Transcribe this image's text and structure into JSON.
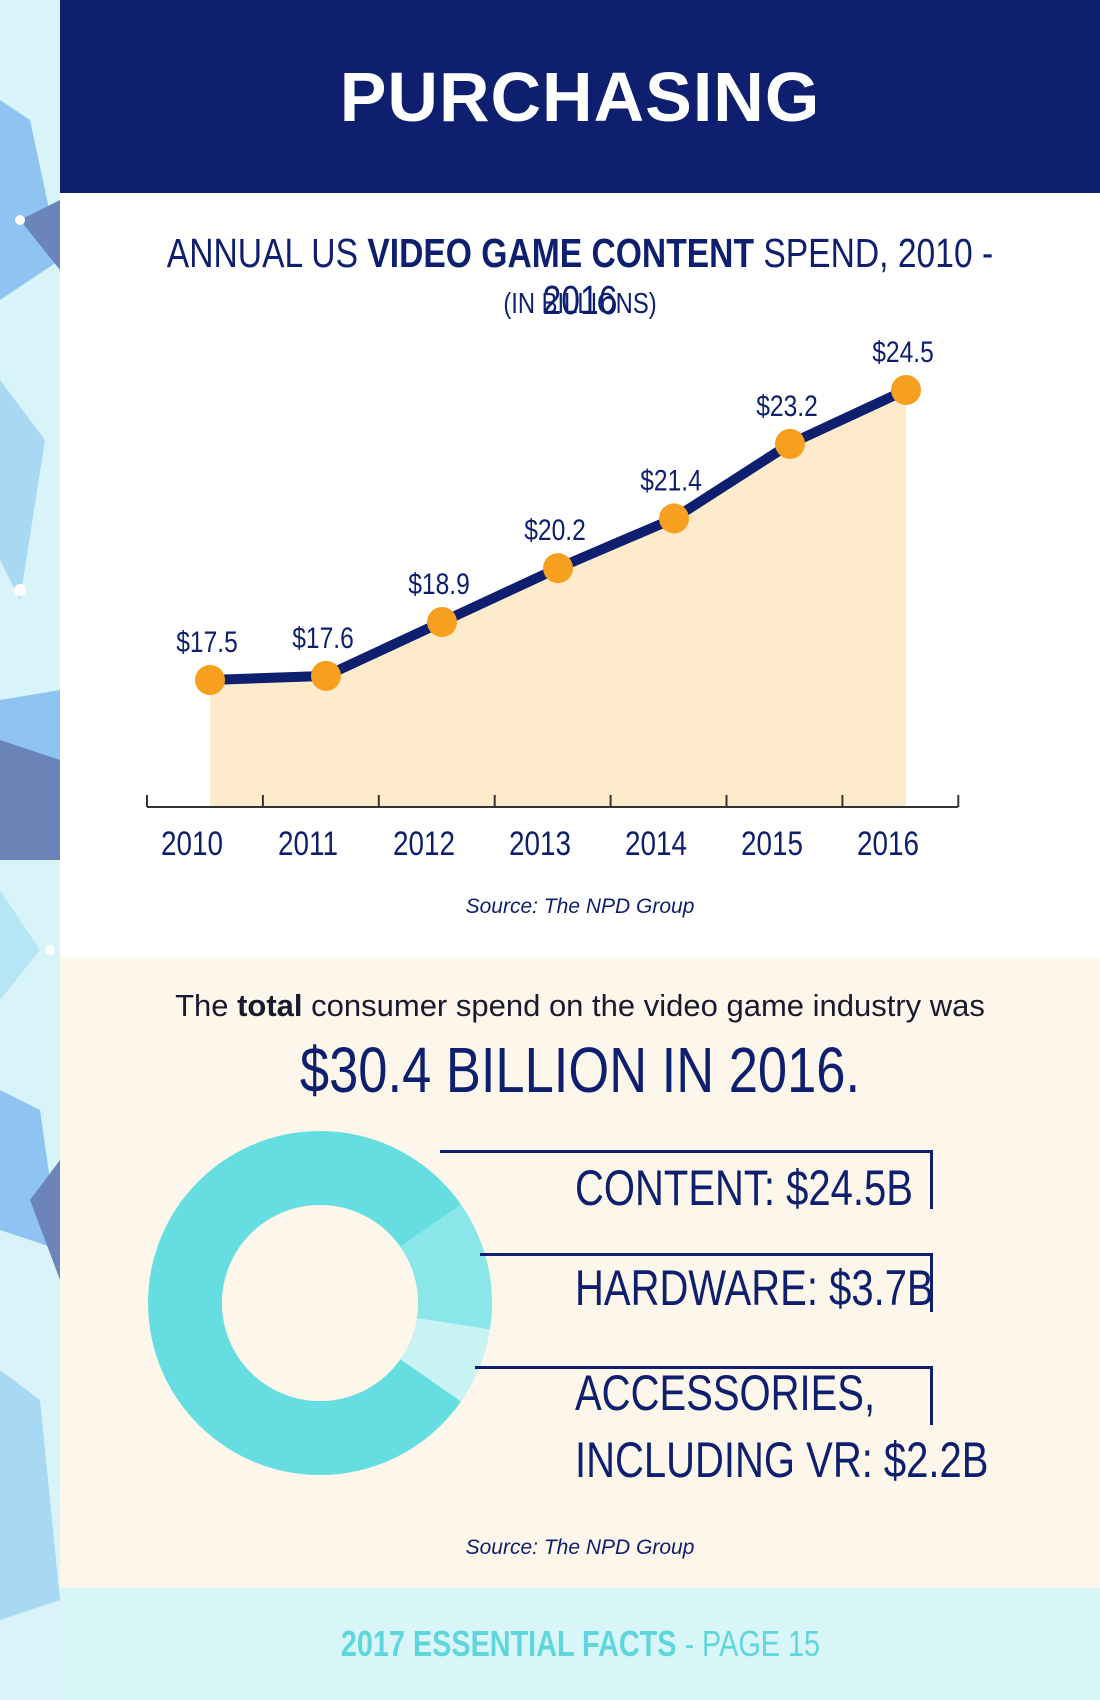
{
  "header": {
    "title": "PURCHASING"
  },
  "chart_data": [
    {
      "type": "area",
      "title_parts": {
        "pre": "ANNUAL US ",
        "bold": "VIDEO GAME CONTENT",
        "post": " SPEND, 2010 - 2016"
      },
      "subtitle": "(IN BILLIONS)",
      "categories": [
        "2010",
        "2011",
        "2012",
        "2013",
        "2014",
        "2015",
        "2016"
      ],
      "values": [
        17.5,
        17.6,
        18.9,
        20.2,
        21.4,
        23.2,
        24.5
      ],
      "data_labels": [
        "$17.5",
        "$17.6",
        "$18.9",
        "$20.2",
        "$21.4",
        "$23.2",
        "$24.5"
      ],
      "xlabel": "",
      "ylabel": "",
      "ylim": [
        15,
        25
      ],
      "grid": false,
      "colors": {
        "line": "#0d1f6e",
        "marker": "#f7a020",
        "fill": "#fdebcc",
        "axis": "#333333"
      },
      "source": "Source: The NPD Group"
    },
    {
      "type": "pie",
      "categories": [
        "CONTENT",
        "HARDWARE",
        "ACCESSORIES, INCLUDING VR"
      ],
      "values": [
        24.5,
        3.7,
        2.2
      ],
      "colors": [
        "#66dde0",
        "#8ae6e8",
        "#c8f3f3"
      ]
    }
  ],
  "summary": {
    "text_pre": "The ",
    "text_bold": "total",
    "text_post": " consumer spend on the video game industry was",
    "headline": "$30.4 BILLION IN 2016.",
    "labels": [
      "CONTENT: $24.5B",
      "HARDWARE: $3.7B",
      "ACCESSORIES,",
      "INCLUDING VR: $2.2B"
    ],
    "source": "Source: The NPD Group"
  },
  "footer": {
    "bold": "2017 ESSENTIAL FACTS",
    "rest": " - PAGE 15"
  }
}
